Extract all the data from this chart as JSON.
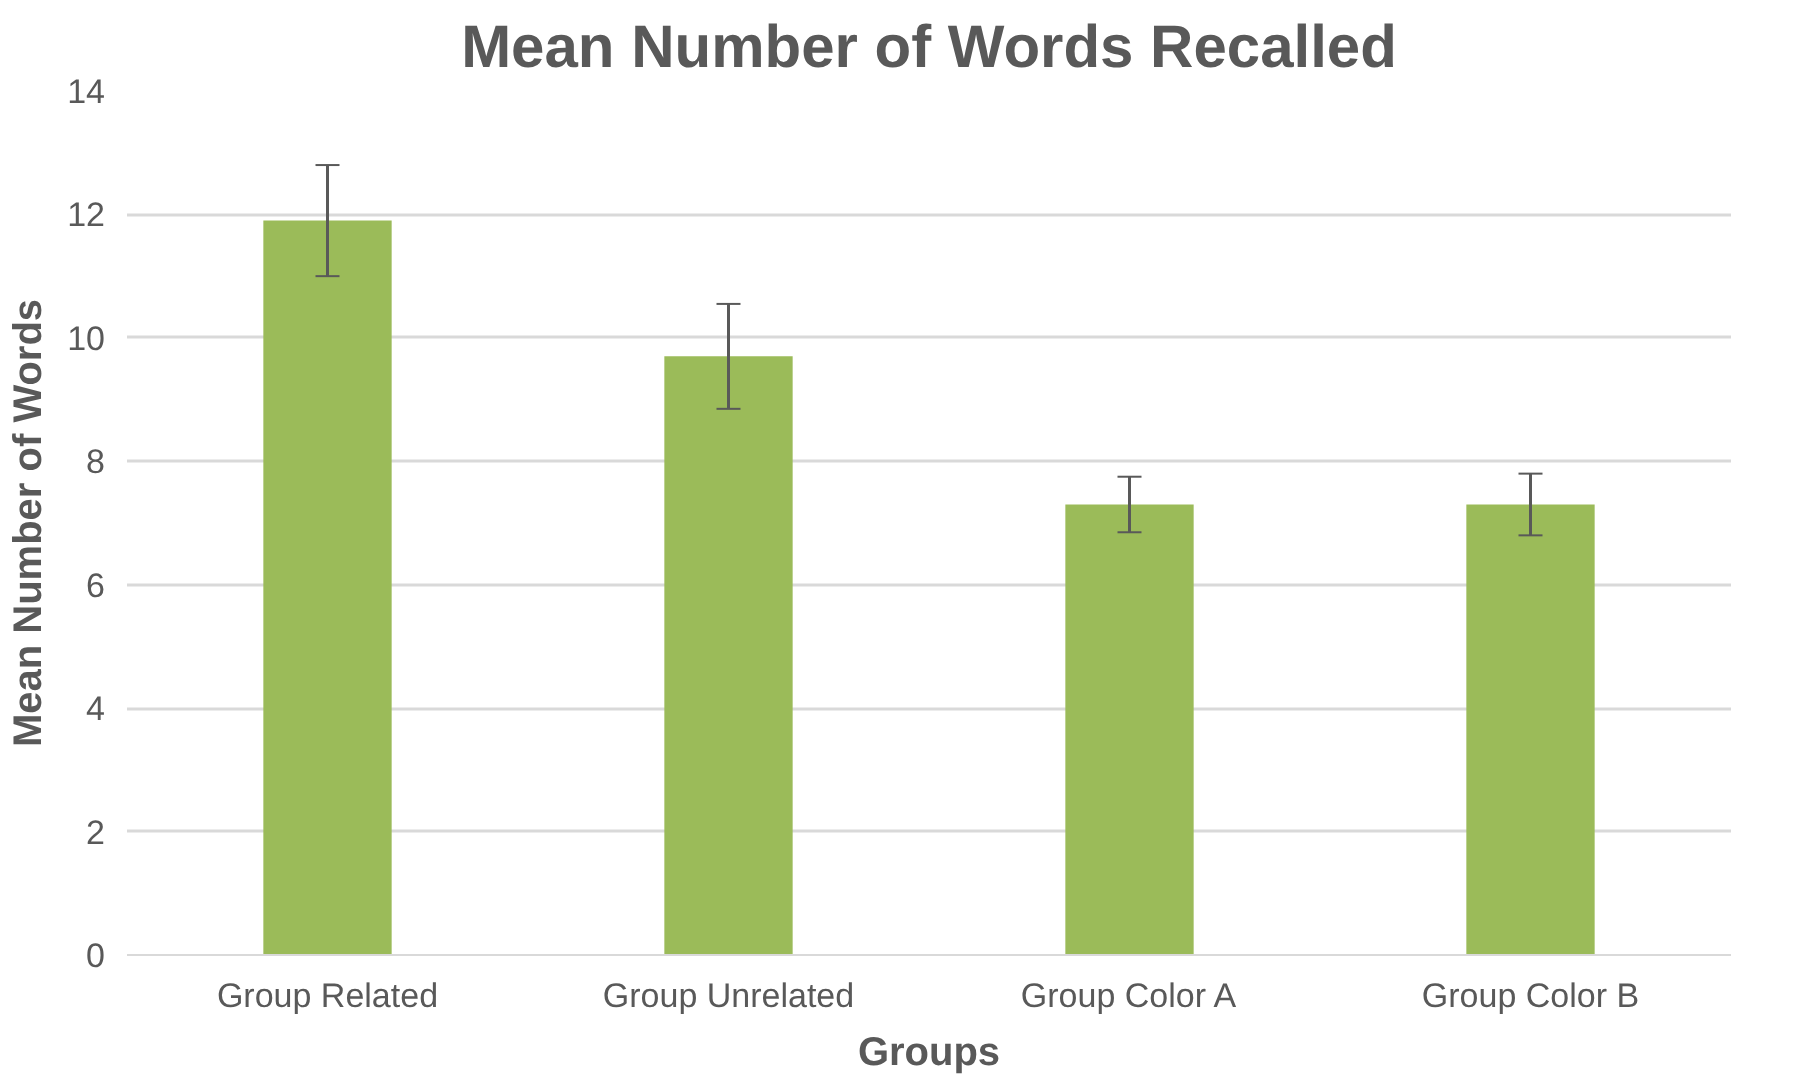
{
  "chart_data": {
    "type": "bar",
    "title": "Mean Number of Words Recalled",
    "xlabel": "Groups",
    "ylabel": "Mean Number of Words",
    "categories": [
      "Group Related",
      "Group Unrelated",
      "Group Color A",
      "Group Color B"
    ],
    "values": [
      11.9,
      9.7,
      7.3,
      7.3
    ],
    "errors": [
      0.9,
      0.85,
      0.45,
      0.5
    ],
    "color": "#9bbb59",
    "ylim": [
      0,
      14
    ],
    "yticks": [
      0,
      2,
      4,
      6,
      8,
      10,
      12,
      14
    ],
    "grid": "y"
  }
}
